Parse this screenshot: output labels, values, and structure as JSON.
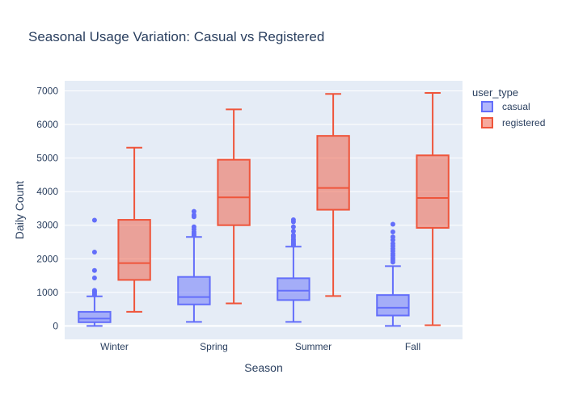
{
  "chart_data": {
    "type": "box",
    "title": "Seasonal Usage Variation: Casual vs Registered",
    "xlabel": "Season",
    "ylabel": "Daily Count",
    "categories": [
      "Winter",
      "Spring",
      "Summer",
      "Fall"
    ],
    "ylim": [
      -400,
      7300
    ],
    "yticks": [
      0,
      1000,
      2000,
      3000,
      4000,
      5000,
      6000,
      7000
    ],
    "grid": true,
    "legend": {
      "title": "user_type",
      "placement": "right",
      "entries": [
        "casual",
        "registered"
      ]
    },
    "series": [
      {
        "name": "casual",
        "color": "#636efa",
        "boxes": [
          {
            "category": "Winter",
            "min": 0,
            "q1": 110,
            "median": 220,
            "q3": 420,
            "max": 880,
            "outliers": [
              920,
              960,
              1000,
              1030,
              1060,
              1430,
              1650,
              2200,
              3150
            ]
          },
          {
            "category": "Spring",
            "min": 120,
            "q1": 640,
            "median": 860,
            "q3": 1460,
            "max": 2650,
            "outliers": [
              2700,
              2750,
              2800,
              2880,
              2950,
              3250,
              3300,
              3410
            ]
          },
          {
            "category": "Summer",
            "min": 120,
            "q1": 770,
            "median": 1050,
            "q3": 1420,
            "max": 2360,
            "outliers": [
              2400,
              2430,
              2460,
              2500,
              2540,
              2580,
              2650,
              2700,
              2820,
              2950,
              3100,
              3160
            ]
          },
          {
            "category": "Fall",
            "min": 0,
            "q1": 310,
            "median": 540,
            "q3": 920,
            "max": 1780,
            "outliers": [
              1900,
              1960,
              2020,
              2090,
              2150,
              2230,
              2300,
              2380,
              2450,
              2560,
              2650,
              2800,
              3030
            ]
          }
        ]
      },
      {
        "name": "registered",
        "color": "#ef553b",
        "boxes": [
          {
            "category": "Winter",
            "min": 420,
            "q1": 1370,
            "median": 1870,
            "q3": 3160,
            "max": 5310,
            "outliers": []
          },
          {
            "category": "Spring",
            "min": 670,
            "q1": 3000,
            "median": 3830,
            "q3": 4950,
            "max": 6450,
            "outliers": []
          },
          {
            "category": "Summer",
            "min": 890,
            "q1": 3460,
            "median": 4110,
            "q3": 5660,
            "max": 6910,
            "outliers": []
          },
          {
            "category": "Fall",
            "min": 20,
            "q1": 2920,
            "median": 3810,
            "q3": 5080,
            "max": 6940,
            "outliers": []
          }
        ]
      }
    ]
  }
}
